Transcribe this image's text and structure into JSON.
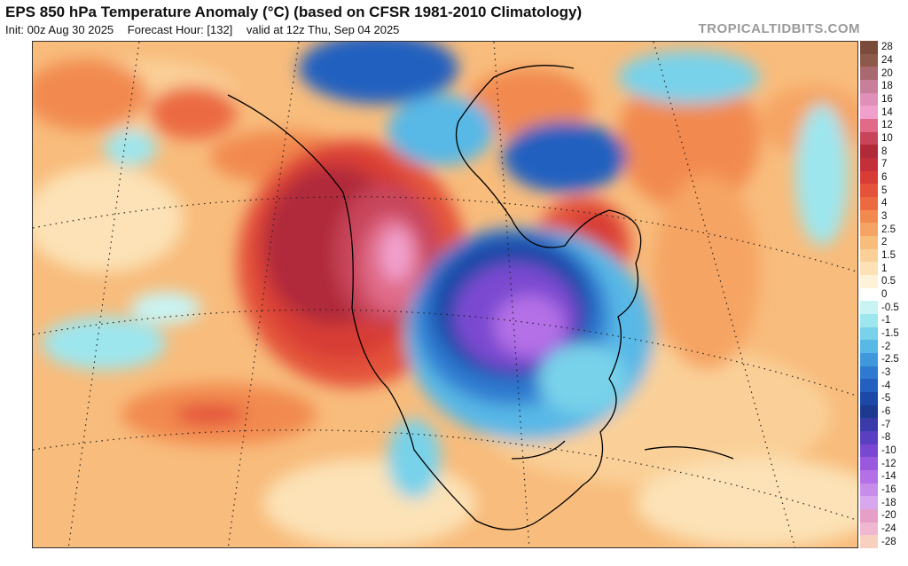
{
  "header": {
    "title": "EPS 850 hPa Temperature Anomaly (°C) (based on CFSR 1981-2010 Climatology)",
    "init": "Init: 00z Aug 30 2025",
    "forecast_hour": "Forecast Hour: [132]",
    "valid": "valid at 12z Thu, Sep 04 2025",
    "brand": "TROPICALTIDBITS.COM"
  },
  "legend": {
    "levels": [
      {
        "label": "28",
        "color": "#7a4a3a"
      },
      {
        "label": "24",
        "color": "#8c5a4a"
      },
      {
        "label": "20",
        "color": "#a86a70"
      },
      {
        "label": "18",
        "color": "#c87f9a"
      },
      {
        "label": "16",
        "color": "#e08fb8"
      },
      {
        "label": "14",
        "color": "#f0a0cc"
      },
      {
        "label": "12",
        "color": "#e06a88"
      },
      {
        "label": "10",
        "color": "#c8445a"
      },
      {
        "label": "8",
        "color": "#b02a3a"
      },
      {
        "label": "7",
        "color": "#c4303a"
      },
      {
        "label": "6",
        "color": "#d83c36"
      },
      {
        "label": "5",
        "color": "#e4523a"
      },
      {
        "label": "4",
        "color": "#ec6a42"
      },
      {
        "label": "3",
        "color": "#f28a50"
      },
      {
        "label": "2.5",
        "color": "#f6a464"
      },
      {
        "label": "2",
        "color": "#f8bc7c"
      },
      {
        "label": "1.5",
        "color": "#fad098"
      },
      {
        "label": "1",
        "color": "#fce2b6"
      },
      {
        "label": "0.5",
        "color": "#fef2d8"
      },
      {
        "label": "0",
        "color": "#ffffff"
      },
      {
        "label": "-0.5",
        "color": "#c8f4f4"
      },
      {
        "label": "-1",
        "color": "#9ee6ee"
      },
      {
        "label": "-1.5",
        "color": "#78d2ea"
      },
      {
        "label": "-2",
        "color": "#58b8e6"
      },
      {
        "label": "-2.5",
        "color": "#4098dc"
      },
      {
        "label": "-3",
        "color": "#2e7ad0"
      },
      {
        "label": "-4",
        "color": "#2460c0"
      },
      {
        "label": "-5",
        "color": "#1c48a8"
      },
      {
        "label": "-6",
        "color": "#1c3a90"
      },
      {
        "label": "-7",
        "color": "#3a3aa8"
      },
      {
        "label": "-8",
        "color": "#5a40c0"
      },
      {
        "label": "-10",
        "color": "#7a48d0"
      },
      {
        "label": "-12",
        "color": "#9a58de"
      },
      {
        "label": "-14",
        "color": "#b470e6"
      },
      {
        "label": "-16",
        "color": "#c88cea"
      },
      {
        "label": "-18",
        "color": "#d8a8ee"
      },
      {
        "label": "-20",
        "color": "#e6a0c8"
      },
      {
        "label": "-24",
        "color": "#f0b8d0"
      },
      {
        "label": "-28",
        "color": "#f8d0c0"
      }
    ]
  },
  "colors": {
    "warm_ocean": "#f8bc7c",
    "strong_warm": "#d83c36",
    "cold_core": "#7a48d0",
    "cool": "#78d2ea",
    "coastline": "#000000"
  }
}
